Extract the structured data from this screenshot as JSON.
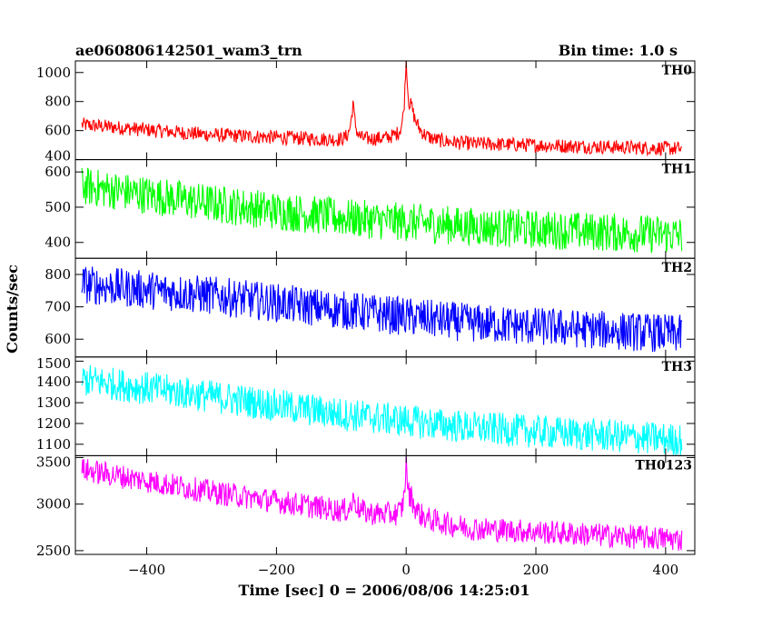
{
  "header": {
    "left": "ae060806142501_wam3_trn",
    "right": "Bin time: 1.0 s"
  },
  "chart_data": {
    "type": "line",
    "title": "ae060806142501_wam3_trn",
    "subtitle": "Bin time: 1.0 s",
    "xlabel": "Time [sec] 0 = 2006/08/06 14:25:01",
    "ylabel": "Counts/sec",
    "xlim": [
      -510,
      445
    ],
    "x_ticks": [
      -400,
      -200,
      0,
      200,
      400
    ],
    "x_tick_labels": [
      "−400",
      "−200",
      "0",
      "200",
      "400"
    ],
    "x_range_data": [
      -500,
      425
    ],
    "grid": false,
    "series": [
      {
        "name": "TH0",
        "color": "#ff0000",
        "ylim": [
          400,
          1080
        ],
        "yticks": [
          400,
          600,
          800,
          1000
        ],
        "trend": [
          [
            -500,
            640
          ],
          [
            -300,
            570
          ],
          [
            -120,
            540
          ],
          [
            0,
            545
          ],
          [
            100,
            510
          ],
          [
            425,
            475
          ]
        ],
        "noise_amplitude": 50,
        "spikes": [
          {
            "x": -82,
            "peak": 800,
            "width": 4
          },
          {
            "x": 0,
            "peak": 1080,
            "width": 2.5
          },
          {
            "x": 8,
            "peak": 760,
            "width": 12
          }
        ]
      },
      {
        "name": "TH1",
        "color": "#00ff00",
        "ylim": [
          355,
          635
        ],
        "yticks": [
          400,
          500,
          600
        ],
        "trend": [
          [
            -500,
            560
          ],
          [
            -300,
            510
          ],
          [
            -100,
            470
          ],
          [
            100,
            445
          ],
          [
            425,
            420
          ]
        ],
        "noise_amplitude": 55,
        "spikes": []
      },
      {
        "name": "TH2",
        "color": "#0000ff",
        "ylim": [
          545,
          850
        ],
        "yticks": [
          600,
          700,
          800
        ],
        "trend": [
          [
            -500,
            770
          ],
          [
            -300,
            735
          ],
          [
            -100,
            690
          ],
          [
            100,
            650
          ],
          [
            425,
            615
          ]
        ],
        "noise_amplitude": 60,
        "spikes": []
      },
      {
        "name": "TH3",
        "color": "#00ffff",
        "ylim": [
          1045,
          1520
        ],
        "yticks": [
          1100,
          1200,
          1300,
          1400,
          1500
        ],
        "trend": [
          [
            -500,
            1410
          ],
          [
            -300,
            1330
          ],
          [
            -100,
            1245
          ],
          [
            100,
            1180
          ],
          [
            425,
            1120
          ]
        ],
        "noise_amplitude": 80,
        "spikes": []
      },
      {
        "name": "TH0123",
        "color": "#ff00ff",
        "ylim": [
          2460,
          3520
        ],
        "yticks": [
          2500,
          3000,
          3500
        ],
        "trend": [
          [
            -500,
            3370
          ],
          [
            -300,
            3130
          ],
          [
            -100,
            2930
          ],
          [
            0,
            2870
          ],
          [
            100,
            2740
          ],
          [
            425,
            2620
          ]
        ],
        "noise_amplitude": 130,
        "spikes": [
          {
            "x": -80,
            "peak": 3080,
            "width": 5
          },
          {
            "x": 0,
            "peak": 3460,
            "width": 2.5
          },
          {
            "x": 8,
            "peak": 3060,
            "width": 10
          }
        ]
      }
    ]
  }
}
